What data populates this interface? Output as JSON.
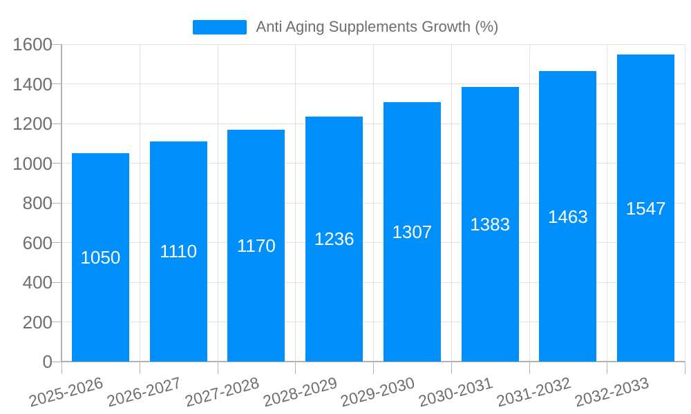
{
  "chart_data": {
    "type": "bar",
    "title": "",
    "xlabel": "",
    "ylabel": "",
    "categories": [
      "2025-2026",
      "2026-2027",
      "2027-2028",
      "2028-2029",
      "2029-2030",
      "2030-2031",
      "2031-2032",
      "2032-2033"
    ],
    "series": [
      {
        "name": "Anti Aging Supplements Growth (%)",
        "values": [
          1050,
          1110,
          1170,
          1236,
          1307,
          1383,
          1463,
          1547
        ]
      }
    ],
    "ylim": [
      0,
      1600
    ],
    "yticks": [
      0,
      200,
      400,
      600,
      800,
      1000,
      1200,
      1400,
      1600
    ],
    "grid": true,
    "legend_position": "top",
    "x_label_rotation_deg": -15,
    "data_labels": "inside-center",
    "colors": {
      "bar": "#008FFB",
      "data_label": "#ffffff",
      "grid_line": "#e2e2e2",
      "axis_line": "#b1b1b1",
      "tick": "#b1b1b1",
      "axis_label": "#6e6e6e",
      "legend_text": "#6e6e6e"
    }
  },
  "legend": {
    "label": "Anti Aging Supplements Growth (%)"
  }
}
